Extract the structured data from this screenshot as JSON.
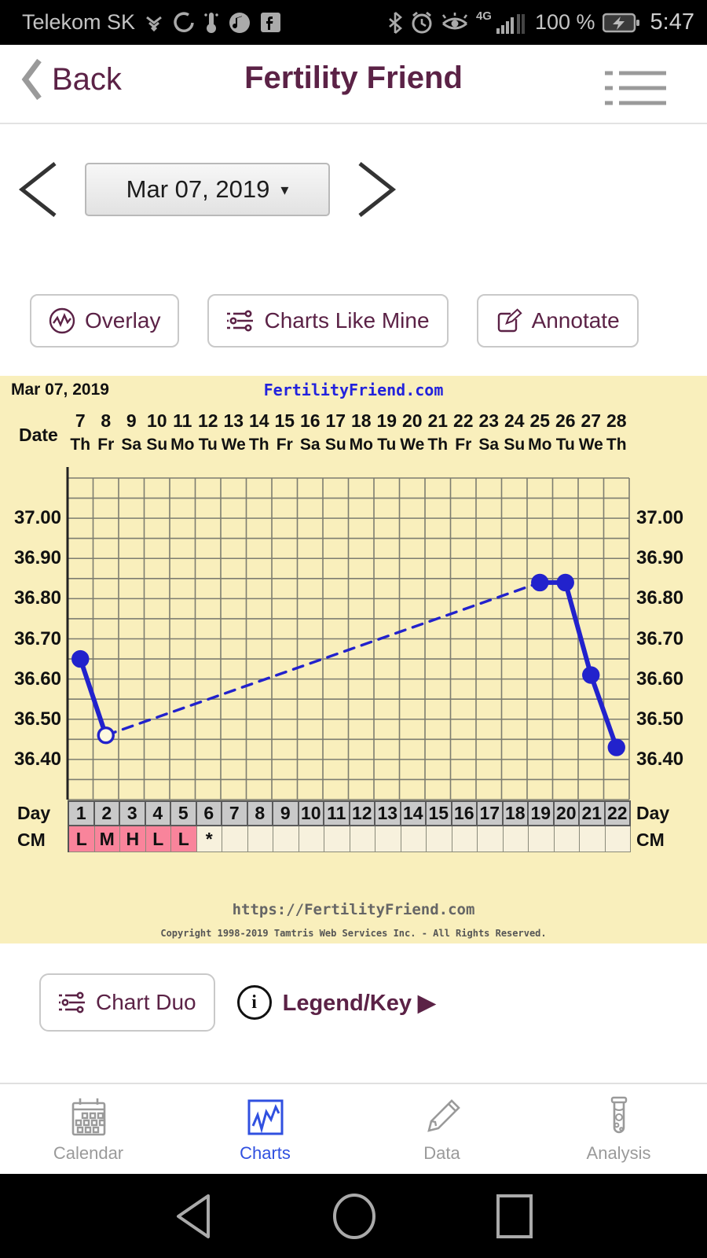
{
  "status_bar": {
    "carrier": "Telekom SK",
    "network": "4G",
    "battery_percent": "100 %",
    "time": "5:47"
  },
  "header": {
    "back_label": "Back",
    "title": "Fertility Friend"
  },
  "date_nav": {
    "value": "Mar 07, 2019",
    "caret": "▾"
  },
  "actions": {
    "overlay": "Overlay",
    "charts_like_mine": "Charts Like Mine",
    "annotate": "Annotate"
  },
  "chart": {
    "date_label": "Mar 07, 2019",
    "brand": "FertilityFriend.com",
    "date_axis_label": "Date",
    "day_axis_label": "Day",
    "cm_axis_label": "CM",
    "url": "https://FertilityFriend.com",
    "copyright": "Copyright 1998-2019 Tamtris Web Services Inc. - All Rights Reserved."
  },
  "chart_data": {
    "type": "line",
    "title": "Basal body temperature chart, cycle starting Mar 07, 2019",
    "x_dates": [
      7,
      8,
      9,
      10,
      11,
      12,
      13,
      14,
      15,
      16,
      17,
      18,
      19,
      20,
      21,
      22,
      23,
      24,
      25,
      26,
      27,
      28
    ],
    "x_weekdays": [
      "Th",
      "Fr",
      "Sa",
      "Su",
      "Mo",
      "Tu",
      "We",
      "Th",
      "Fr",
      "Sa",
      "Su",
      "Mo",
      "Tu",
      "We",
      "Th",
      "Fr",
      "Sa",
      "Su",
      "Mo",
      "Tu",
      "We",
      "Th"
    ],
    "cycle_days": [
      1,
      2,
      3,
      4,
      5,
      6,
      7,
      8,
      9,
      10,
      11,
      12,
      13,
      14,
      15,
      16,
      17,
      18,
      19,
      20,
      21,
      22
    ],
    "ylim": [
      36.3,
      37.1
    ],
    "yticks": [
      "37.00",
      "36.90",
      "36.80",
      "36.70",
      "36.60",
      "36.50",
      "36.40"
    ],
    "ytick_values": [
      37.0,
      36.9,
      36.8,
      36.7,
      36.6,
      36.5,
      36.4
    ],
    "grid_step": 0.05,
    "points": [
      {
        "day": 1,
        "temp": 36.65,
        "style": "filled"
      },
      {
        "day": 2,
        "temp": 36.46,
        "style": "open"
      },
      {
        "day": 19,
        "temp": 36.84,
        "style": "filled"
      },
      {
        "day": 20,
        "temp": 36.84,
        "style": "filled"
      },
      {
        "day": 21,
        "temp": 36.61,
        "style": "filled"
      },
      {
        "day": 22,
        "temp": 36.43,
        "style": "filled"
      }
    ],
    "segments": [
      {
        "from": 1,
        "to": 2,
        "dashed": false
      },
      {
        "from": 2,
        "to": 19,
        "dashed": true
      },
      {
        "from": 19,
        "to": 20,
        "dashed": false
      },
      {
        "from": 20,
        "to": 21,
        "dashed": false
      },
      {
        "from": 21,
        "to": 22,
        "dashed": false
      }
    ],
    "cm_values": [
      "L",
      "M",
      "H",
      "L",
      "L",
      "*",
      "",
      "",
      "",
      "",
      "",
      "",
      "",
      "",
      "",
      "",
      "",
      "",
      "",
      "",
      "",
      ""
    ],
    "cm_pink_days": [
      1,
      2,
      3,
      4,
      5
    ],
    "line_color": "#2222cc",
    "grid_color": "#7d7d70",
    "axis_color": "#222222",
    "background_color": "#f9efbc",
    "day_cell_color": "#c9c9c9",
    "cm_pink_color": "#f9849b",
    "cm_empty_color": "#f7f1dd"
  },
  "below_chart": {
    "chart_duo": "Chart Duo",
    "info_glyph": "i",
    "legend": "Legend/Key ▶"
  },
  "tab_bar": {
    "items": [
      {
        "label": "Calendar",
        "active": false
      },
      {
        "label": "Charts",
        "active": true
      },
      {
        "label": "Data",
        "active": false
      },
      {
        "label": "Analysis",
        "active": false
      }
    ],
    "active_color": "#3050e0",
    "inactive_color": "#9a9a9a"
  }
}
